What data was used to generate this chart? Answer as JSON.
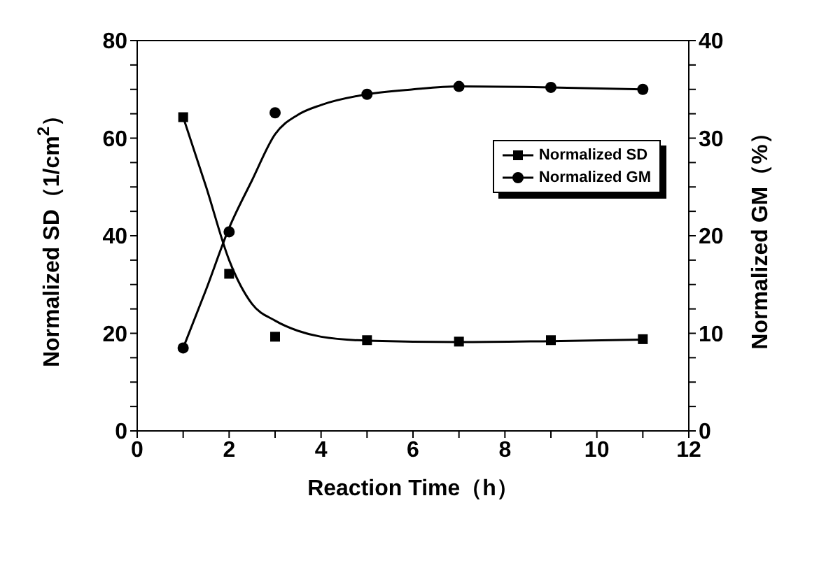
{
  "chart_data": {
    "type": "scatter",
    "xlabel": "Reaction Time（h）",
    "ylabel": "Normalized SD（1/cm$^{2}$）",
    "y2label": "Normalized GM（%）",
    "x": [
      1,
      2,
      3,
      5,
      7,
      9,
      11
    ],
    "series": [
      {
        "name": "Normalized SD",
        "color": "#000000",
        "marker": "square",
        "values": [
          64.3,
          32.2,
          19.3,
          18.6,
          18.3,
          18.6,
          18.8
        ]
      },
      {
        "name": "Normalized GM",
        "color": "#000000",
        "marker": "circle",
        "axis": "y2",
        "values": [
          8.5,
          20.4,
          32.6,
          34.5,
          35.3,
          35.2,
          35.0
        ]
      },
      {
        "type": "line",
        "color": "#000000",
        "x": [
          1,
          1.5,
          2,
          2.5,
          3,
          3.5,
          4,
          5,
          7,
          9,
          11
        ],
        "values": [
          64.3,
          50,
          35,
          26,
          22.6,
          20.5,
          19.3,
          18.5,
          18.2,
          18.4,
          18.7
        ]
      },
      {
        "type": "line",
        "color": "#000000",
        "axis": "y2",
        "x": [
          1,
          1.5,
          2,
          2.5,
          3,
          3.5,
          4,
          5,
          6,
          7,
          9,
          11
        ],
        "values": [
          8.5,
          14.5,
          20.8,
          25.7,
          30.4,
          32.4,
          33.4,
          34.5,
          35.0,
          35.3,
          35.2,
          35.0
        ]
      }
    ],
    "xlim": [
      0,
      12
    ],
    "xticks": [
      0,
      {
        "value": 1,
        "label": null
      },
      2,
      {
        "value": 3,
        "label": null
      },
      4,
      {
        "value": 5,
        "label": null
      },
      6,
      {
        "value": 7,
        "label": null
      },
      8,
      {
        "value": 9,
        "label": null
      },
      10,
      {
        "value": 11,
        "label": null
      },
      12
    ],
    "ylim": [
      0,
      80
    ],
    "yticks": [
      0,
      {
        "value": 5,
        "label": null
      },
      {
        "value": 10,
        "label": null
      },
      {
        "value": 15,
        "label": null
      },
      20,
      {
        "value": 25,
        "label": null
      },
      {
        "value": 30,
        "label": null
      },
      {
        "value": 35,
        "label": null
      },
      40,
      {
        "value": 45,
        "label": null
      },
      {
        "value": 50,
        "label": null
      },
      {
        "value": 55,
        "label": null
      },
      60,
      {
        "value": 65,
        "label": null
      },
      {
        "value": 70,
        "label": null
      },
      {
        "value": 75,
        "label": null
      },
      80
    ],
    "y2lim": [
      0,
      40
    ],
    "y2ticks": [
      0,
      {
        "value": 2.5,
        "label": null
      },
      {
        "value": 5,
        "label": null
      },
      {
        "value": 7.5,
        "label": null
      },
      10,
      {
        "value": 12.5,
        "label": null
      },
      {
        "value": 15,
        "label": null
      },
      {
        "value": 17.5,
        "label": null
      },
      20,
      {
        "value": 22.5,
        "label": null
      },
      {
        "value": 25,
        "label": null
      },
      {
        "value": 27.5,
        "label": null
      },
      30,
      {
        "value": 32.5,
        "label": null
      },
      {
        "value": 35,
        "label": null
      },
      {
        "value": 37.5,
        "label": null
      },
      40
    ],
    "grid": false,
    "legend": "top right",
    "line_style": "solid"
  }
}
